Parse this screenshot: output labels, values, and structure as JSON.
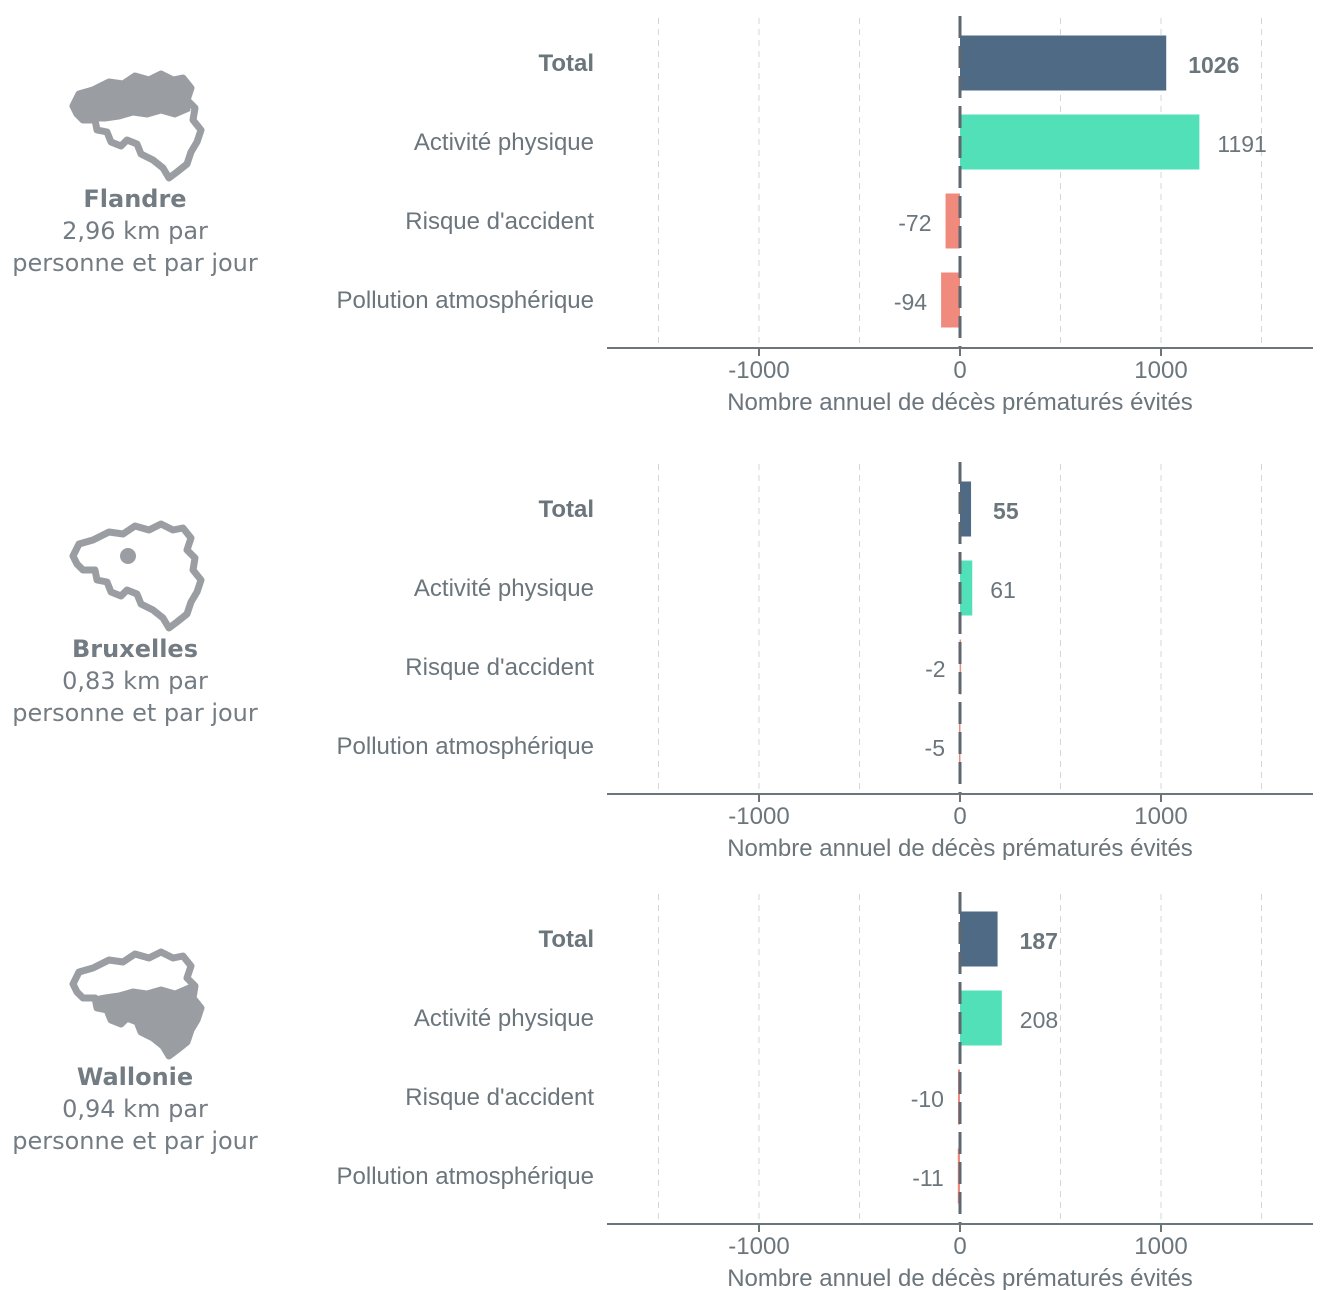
{
  "xlabel": "Nombre annuel de décès prématurés évités",
  "xlim": [
    -1750,
    1750
  ],
  "xticks": [
    -1000,
    0,
    1000
  ],
  "xtick_labels": [
    "-1000",
    "0",
    "1000"
  ],
  "gridlines": [
    -1500,
    -1000,
    -500,
    500,
    1000,
    1500
  ],
  "colors": {
    "total": "#4e6a84",
    "activity": "#52e0b9",
    "negative": "#f08a7d",
    "text": "#6b757c",
    "map": "#9a9ea3"
  },
  "chart_data": [
    {
      "type": "bar",
      "orientation": "horizontal",
      "region": "Flandre",
      "subtitle_lines": [
        "2,96 km par",
        "personne et par jour"
      ],
      "map_icon": "belgium-map-flanders-icon",
      "categories": [
        "Total",
        "Activité physique",
        "Risque d'accident",
        "Pollution atmosphérique"
      ],
      "values": [
        1026,
        1191,
        -72,
        -94
      ],
      "value_labels": [
        "1026",
        "1191",
        "-72",
        "-94"
      ],
      "xlabel": "Nombre annuel de décès prématurés évités",
      "xlim": [
        -1750,
        1750
      ],
      "grid": true
    },
    {
      "type": "bar",
      "orientation": "horizontal",
      "region": "Bruxelles",
      "subtitle_lines": [
        "0,83 km par",
        "personne et par jour"
      ],
      "map_icon": "belgium-map-brussels-icon",
      "categories": [
        "Total",
        "Activité physique",
        "Risque d'accident",
        "Pollution atmosphérique"
      ],
      "values": [
        55,
        61,
        -2,
        -5
      ],
      "value_labels": [
        "55",
        "61",
        "-2",
        "-5"
      ],
      "xlabel": "Nombre annuel de décès prématurés évités",
      "xlim": [
        -1750,
        1750
      ],
      "grid": true
    },
    {
      "type": "bar",
      "orientation": "horizontal",
      "region": "Wallonie",
      "subtitle_lines": [
        "0,94 km par",
        "personne et par jour"
      ],
      "map_icon": "belgium-map-wallonia-icon",
      "categories": [
        "Total",
        "Activité physique",
        "Risque d'accident",
        "Pollution atmosphérique"
      ],
      "values": [
        187,
        208,
        -10,
        -11
      ],
      "value_labels": [
        "187",
        "208",
        "-10",
        "-11"
      ],
      "xlabel": "Nombre annuel de décès prématurés évités",
      "xlim": [
        -1750,
        1750
      ],
      "grid": true
    }
  ]
}
